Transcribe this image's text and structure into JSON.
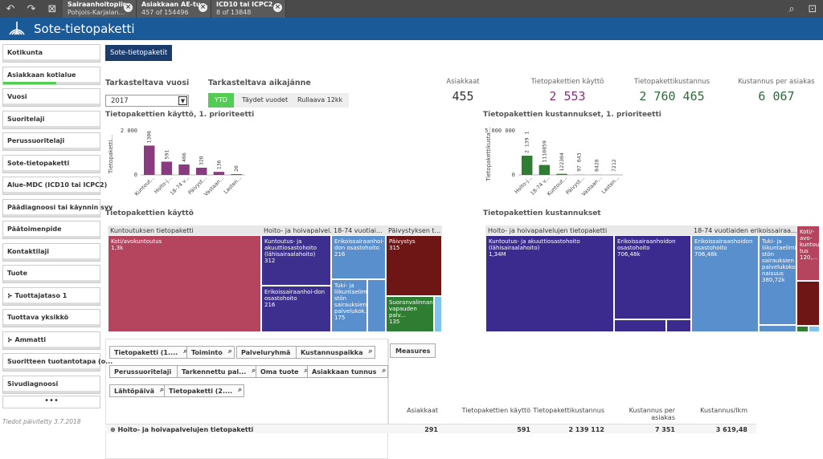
{
  "selections": [
    {
      "title": "Sairaanhoitopiir...",
      "value": "Pohjois-Karjalan..."
    },
    {
      "title": "Asiakkaan AE-tu...",
      "value": "457 of 154496"
    },
    {
      "title": "ICD10 tai ICPC2",
      "value": "8 of 13848"
    }
  ],
  "app_title": "Sote-tietopaketti",
  "sidebar": [
    "Kotikunta",
    "Asiakkaan kotialue",
    "Vuosi",
    "Suoritelaji",
    "Perussuoritelaji",
    "Sote-tietopaketti",
    "Alue-MDC (ICD10 tai ICPC2)",
    "Päädiagnoosi tai käynnin syy",
    "Päätoimenpide",
    "Kontaktilaji",
    "Tuote",
    "Tuottajataso 1",
    "Tuottava yksikkö",
    "Ammatti",
    "Suoritteen tuotantotapa (o...",
    "Sivudiagnoosi"
  ],
  "sidebar_more": "•••",
  "footer": "Tiedot päivitetty 3.7.2018",
  "tab_label": "Sote-tietopaketit",
  "year_label": "Tarkasteltava vuosi",
  "year_value": "2017",
  "period_label": "Tarkasteltava aikajänne",
  "period_options": [
    "YTD",
    "Täydet vuodet",
    "Rullaava 12kk"
  ],
  "kpis": [
    {
      "label": "Asiakkaat",
      "value": "455",
      "color": "#333333"
    },
    {
      "label": "Tietopakettien käyttö",
      "value": "2 553",
      "color": "#8a2f7e"
    },
    {
      "label": "Tietopakettikustannus",
      "value": "2 760 465",
      "color": "#2e6b3a"
    },
    {
      "label": "Kustannus per asiakas",
      "value": "6 067",
      "color": "#2e6b3a"
    }
  ],
  "chart_left_title": "Tietopakettien käyttö, 1. prioriteetti",
  "chart_right_title": "Tietopakettien kustannukset, 1. prioriteetti",
  "chart_data": [
    {
      "type": "bar",
      "ylabel": "Tietopaketti...",
      "yticks": [
        "2 000",
        "0"
      ],
      "ylim": [
        0,
        2000
      ],
      "color": "#8a3a7e",
      "categories": [
        "Kuntout...",
        "Hoito-j...",
        "18-74 v...",
        "Päivyst...",
        "Vastaan...",
        "Lasten..."
      ],
      "values": [
        1306,
        591,
        466,
        320,
        136,
        20
      ],
      "value_labels": [
        "1306",
        "591",
        "466",
        "320",
        "136",
        "20"
      ]
    },
    {
      "type": "bar",
      "ylabel": "Tietopakettikusta...",
      "yticks": [
        "5 000 000",
        "0"
      ],
      "ylim": [
        0,
        5000000
      ],
      "categories": [
        "Hoito-j...",
        "18-74 v...",
        "Kuntout...",
        "Päivyst...",
        "Vastaan...",
        "Lasten..."
      ],
      "values": [
        2139112,
        1110859,
        122304,
        97643,
        8428,
        7212
      ],
      "value_labels": [
        "2 139 1",
        "1110859",
        "122304",
        "97 643",
        "8428",
        "7212"
      ],
      "colors": [
        "#2e7d32",
        "#2e7d32",
        "#2e7d32",
        "#cccccc",
        "#cccccc",
        "#cccccc"
      ]
    }
  ],
  "treemap_left_title": "Tietopakettien käyttö",
  "treemap_right_title": "Tietopakettien kustannukset",
  "tm_left_headers": [
    "Kuntoutuksen tietopaketti",
    "Hoito- ja hoivapalvel...",
    "18-74 vuotiai...",
    "Päivystyksen t..."
  ],
  "tm_left": [
    {
      "label": "Koti/avokuntoutus",
      "value": "1,3k"
    },
    {
      "label": "Kuntoutus- ja akuuttiosastohoito (lähisairaalahoito)",
      "value": "312"
    },
    {
      "label": "Erikoissairaanhoi-don osastohoito",
      "value": "216"
    },
    {
      "label": "Erikoissairaanhoi-don osastohoito",
      "value": "216"
    },
    {
      "label": "Tuki- ja liikuntaelimi-stön sairauksien palvelukok...",
      "value": "175"
    },
    {
      "label": "Päivystys",
      "value": "315"
    },
    {
      "label": "Suoranvalinnan-vapauden palv...",
      "value": "135"
    }
  ],
  "tm_right_headers": [
    "Hoito- ja hoivapalvelujen tietopaketti",
    "18-74 vuotiaiden erikoissairaa...",
    "Koti/-avo-kuntou-tus"
  ],
  "tm_right": [
    {
      "label": "Kuntoutus- ja akuuttiosastohoito (lähisairaalahoito)",
      "value": "1,34M"
    },
    {
      "label": "Erikoissairaanhoidon osastohoito",
      "value": "706,48k"
    },
    {
      "label": "Erikoissairaanhoidon osastohoito",
      "value": "706,48k"
    },
    {
      "label": "Tuki- ja liikuntaelimi-stön sairauksien palvelukoko-naisuus",
      "value": "380,72k"
    },
    {
      "label": "",
      "value": "120,..."
    }
  ],
  "filters": [
    "Tietopaketti (1....",
    "Toiminto",
    "Palveluryhmä",
    "Kustannuspaikka",
    "Perussuoritelaji",
    "Tarkennettu pal...",
    "Oma tuote",
    "Asiakkaan tunnus",
    "Lähtöpäivä",
    "Tietopaketti (2...."
  ],
  "measures_label": "Measures",
  "table_headers": [
    "Asiakkaat",
    "Tietopakettien käyttö",
    "Tietopakettikustannus",
    "Kustannus per asiakas",
    "Kustannus/lkm"
  ],
  "table_row": {
    "label": "Hoito- ja hoivapalvelujen tietopaketti",
    "values": [
      "291",
      "591",
      "2 139 112",
      "7 351",
      "3 619,48"
    ]
  }
}
